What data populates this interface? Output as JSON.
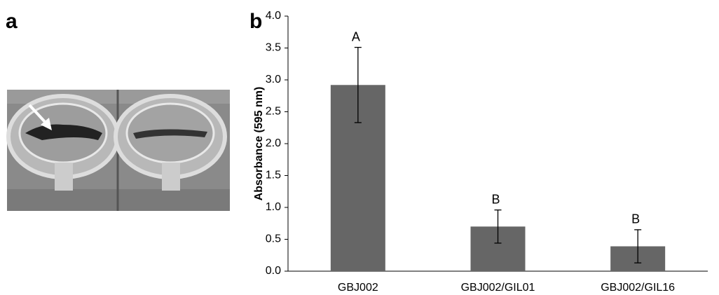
{
  "panel_labels": [
    "a",
    "b"
  ],
  "chart_data": {
    "type": "bar",
    "y_label": "Absorbance (595 nm)",
    "categories": [
      "GBJ002",
      "GBJ002/GIL01",
      "GBJ002/GIL16"
    ],
    "values": [
      2.92,
      0.7,
      0.39
    ],
    "errors": [
      0.59,
      0.26,
      0.26
    ],
    "annotations": [
      "A",
      "B",
      "B"
    ],
    "color": "#666666",
    "ylim": [
      0,
      4
    ],
    "yticks": [
      {
        "value": 0,
        "label": "0.0"
      },
      0.5,
      {
        "value": 1,
        "label": "1.0"
      },
      1.5,
      {
        "value": 2,
        "label": "2.0"
      },
      2.5,
      {
        "value": 3,
        "label": "3.0"
      },
      3.5,
      {
        "value": 4,
        "label": "4.0"
      }
    ]
  }
}
